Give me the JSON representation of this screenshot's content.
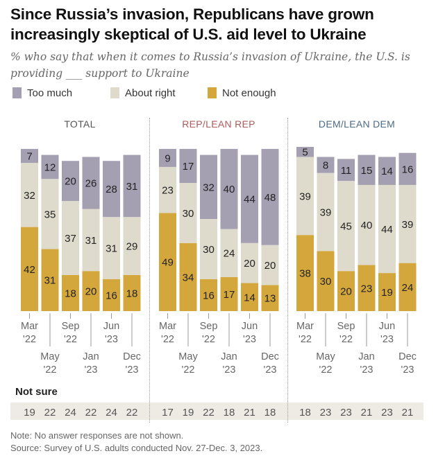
{
  "title": "Since Russia’s invasion, Republicans have grown increasingly skeptical of U.S. aid level to Ukraine",
  "subtitle": "% who say that when it comes to Russia’s invasion of Ukraine, the U.S. is providing ___ support to Ukraine",
  "colors": {
    "too_much": "#a59fb2",
    "about_right": "#dedbcd",
    "not_enough": "#d4a73c",
    "rep": "#b05a5a",
    "dem": "#4d6a84",
    "total": "#555555"
  },
  "legend": [
    {
      "label": "Too much",
      "key": "too_much"
    },
    {
      "label": "About right",
      "key": "about_right"
    },
    {
      "label": "Not enough",
      "key": "not_enough"
    }
  ],
  "not_sure_label": "Not sure",
  "note": "Note: No answer responses are not shown.",
  "source": "Source: Survey of U.S. adults conducted Nov. 27-Dec. 3, 2023.",
  "chart_data": {
    "type": "bar",
    "stacked": true,
    "categories": [
      "Mar '22",
      "May '22",
      "Sep '22",
      "Jan '23",
      "Jun '23",
      "Dec '23"
    ],
    "tick_labels": [
      {
        "month": "Mar",
        "year": "'22"
      },
      {
        "month": "May",
        "year": "'22"
      },
      {
        "month": "Sep",
        "year": "'22"
      },
      {
        "month": "Jan",
        "year": "'23"
      },
      {
        "month": "Jun",
        "year": "'23"
      },
      {
        "month": "Dec",
        "year": "'23"
      }
    ],
    "legend_position": "top-left",
    "panels": [
      {
        "title": "TOTAL",
        "title_color_key": "total",
        "series": [
          {
            "name": "Not enough",
            "key": "not_enough",
            "values": [
              42,
              31,
              18,
              20,
              16,
              18
            ]
          },
          {
            "name": "About right",
            "key": "about_right",
            "values": [
              32,
              35,
              37,
              31,
              31,
              29
            ]
          },
          {
            "name": "Too much",
            "key": "too_much",
            "values": [
              7,
              12,
              20,
              26,
              28,
              31
            ]
          }
        ],
        "not_sure": [
          19,
          22,
          24,
          22,
          24,
          22
        ]
      },
      {
        "title": "REP/LEAN REP",
        "title_color_key": "rep",
        "series": [
          {
            "name": "Not enough",
            "key": "not_enough",
            "values": [
              49,
              34,
              16,
              17,
              14,
              13
            ]
          },
          {
            "name": "About right",
            "key": "about_right",
            "values": [
              23,
              30,
              30,
              24,
              20,
              20
            ]
          },
          {
            "name": "Too much",
            "key": "too_much",
            "values": [
              9,
              17,
              32,
              40,
              44,
              48
            ]
          }
        ],
        "not_sure": [
          17,
          19,
          22,
          18,
          21,
          18
        ]
      },
      {
        "title": "DEM/LEAN DEM",
        "title_color_key": "dem",
        "series": [
          {
            "name": "Not enough",
            "key": "not_enough",
            "values": [
              38,
              30,
              20,
              23,
              19,
              24
            ]
          },
          {
            "name": "About right",
            "key": "about_right",
            "values": [
              39,
              39,
              45,
              40,
              44,
              39
            ]
          },
          {
            "name": "Too much",
            "key": "too_much",
            "values": [
              5,
              8,
              11,
              15,
              14,
              16
            ]
          }
        ],
        "not_sure": [
          18,
          23,
          23,
          21,
          23,
          21
        ]
      }
    ],
    "ylim": [
      0,
      100
    ],
    "grid": false
  }
}
